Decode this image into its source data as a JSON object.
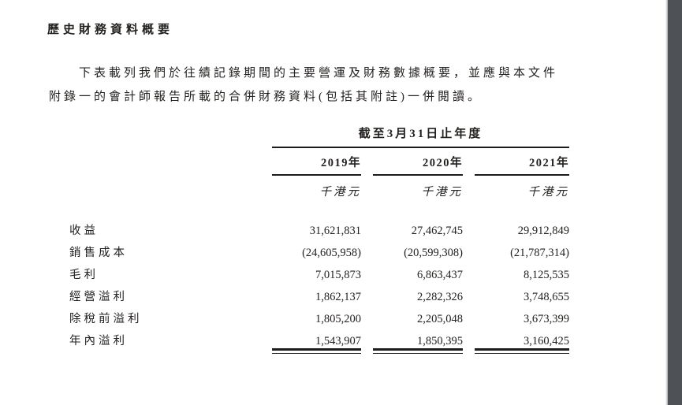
{
  "document": {
    "title": "歷史財務資料概要",
    "paragraph_lines": [
      "下表載列我們於往績記錄期間的主要營運及財務數據概要，並應與本文件",
      "附錄一的會計師報告所載的合併財務資料(包括其附註)一併閱讀。"
    ]
  },
  "table": {
    "span_header": "截至3月31日止年度",
    "columns": [
      "2019年",
      "2020年",
      "2021年"
    ],
    "units": [
      "千港元",
      "千港元",
      "千港元"
    ],
    "rows": [
      {
        "label": "收益",
        "values": [
          "31,621,831",
          "27,462,745",
          "29,912,849"
        ]
      },
      {
        "label": "銷售成本",
        "values": [
          "(24,605,958)",
          "(20,599,308)",
          "(21,787,314)"
        ]
      },
      {
        "label": "毛利",
        "values": [
          "7,015,873",
          "6,863,437",
          "8,125,535"
        ]
      },
      {
        "label": "經營溢利",
        "values": [
          "1,862,137",
          "2,282,326",
          "3,748,655"
        ]
      },
      {
        "label": "除稅前溢利",
        "values": [
          "1,805,200",
          "2,205,048",
          "3,673,399"
        ]
      },
      {
        "label": "年內溢利",
        "values": [
          "1,543,907",
          "1,850,395",
          "3,160,425"
        ]
      }
    ]
  },
  "colors": {
    "page_background": "#ffffff",
    "text": "#242220",
    "table_rule": "#1c1c1c",
    "viewer_strip": "#4e5256",
    "page_edge": "#aeb2b5"
  }
}
